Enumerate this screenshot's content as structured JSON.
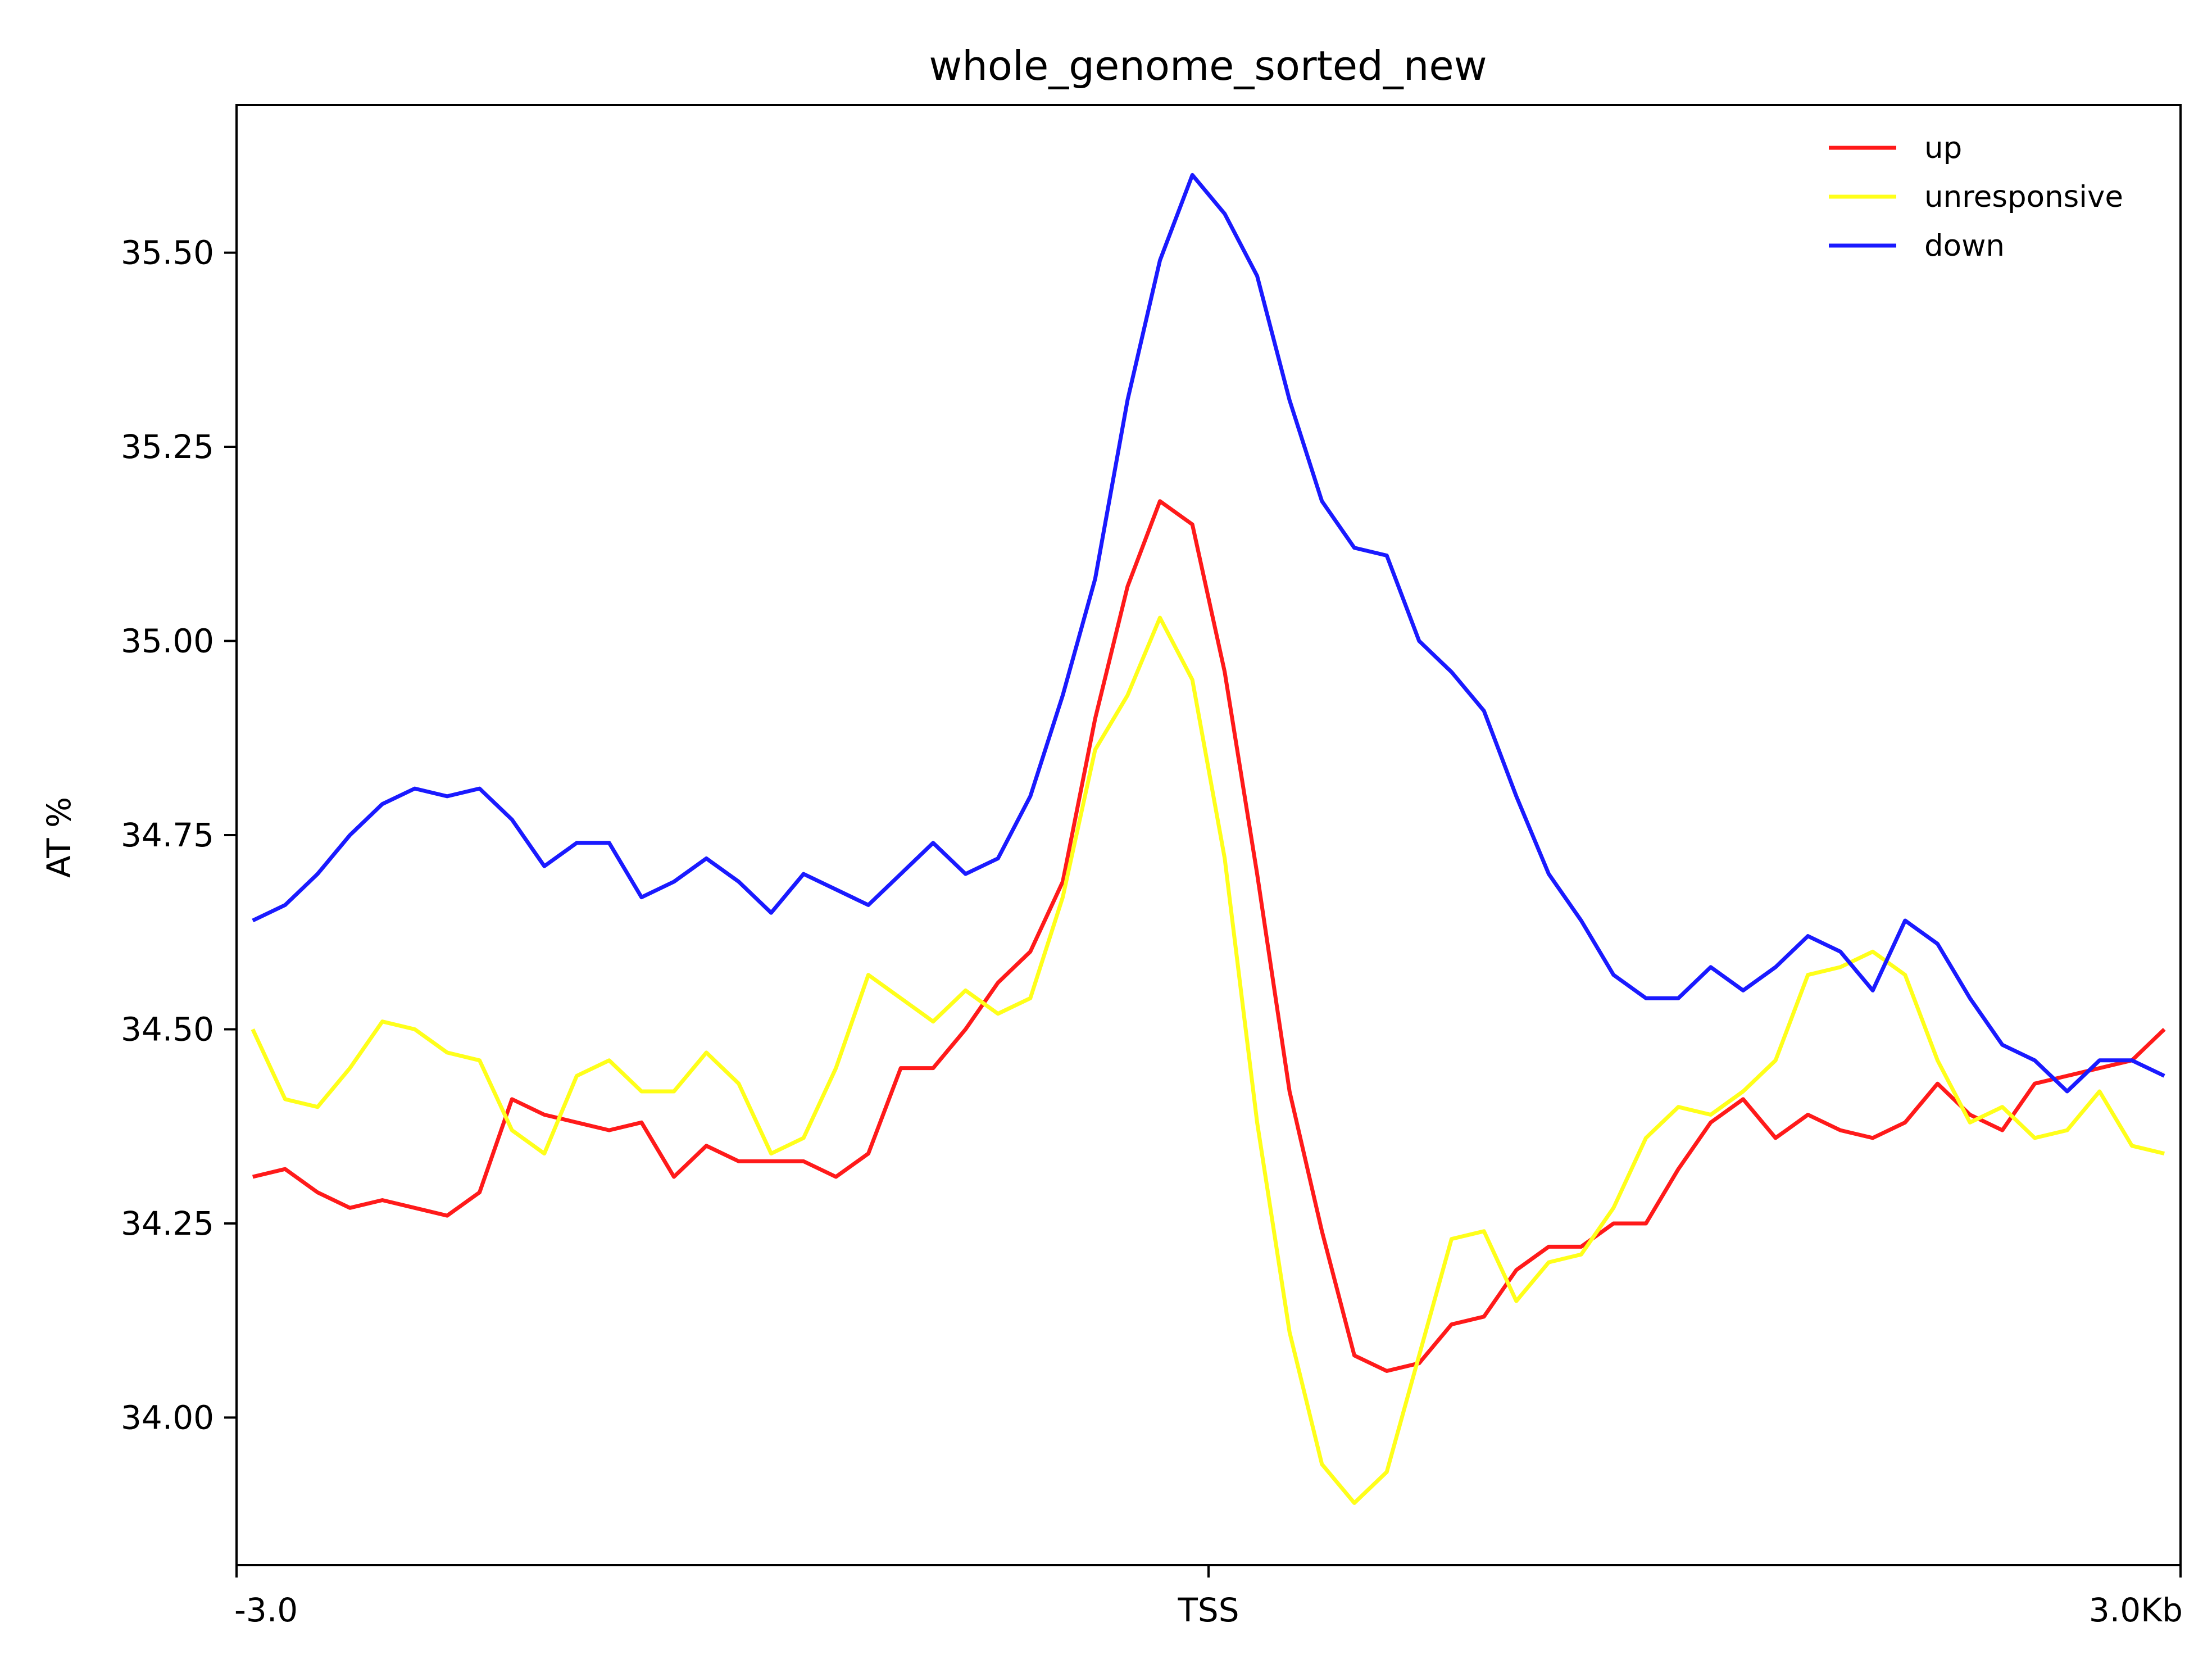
{
  "chart_data": {
    "type": "line",
    "title": "whole_genome_sorted_new",
    "xlabel": "",
    "ylabel": "AT %",
    "xlim": [
      -3.0,
      3.0
    ],
    "ylim": [
      33.81,
      35.69
    ],
    "x_ticks": [
      {
        "value": -3.0,
        "label": "-3.0"
      },
      {
        "value": 0.0,
        "label": "TSS"
      },
      {
        "value": 3.0,
        "label": "3.0Kb"
      }
    ],
    "y_ticks": [
      {
        "value": 34.0,
        "label": "34.00"
      },
      {
        "value": 34.25,
        "label": "34.25"
      },
      {
        "value": 34.5,
        "label": "34.50"
      },
      {
        "value": 34.75,
        "label": "34.75"
      },
      {
        "value": 35.0,
        "label": "35.00"
      },
      {
        "value": 35.25,
        "label": "35.25"
      },
      {
        "value": 35.5,
        "label": "35.50"
      }
    ],
    "grid": false,
    "legend_position": "top-right",
    "x": [
      -2.95,
      -2.85,
      -2.75,
      -2.65,
      -2.55,
      -2.45,
      -2.35,
      -2.25,
      -2.15,
      -2.05,
      -1.95,
      -1.85,
      -1.75,
      -1.65,
      -1.55,
      -1.45,
      -1.35,
      -1.25,
      -1.15,
      -1.05,
      -0.95,
      -0.85,
      -0.75,
      -0.65,
      -0.55,
      -0.45,
      -0.35,
      -0.25,
      -0.15,
      -0.05,
      0.05,
      0.15,
      0.25,
      0.35,
      0.45,
      0.55,
      0.65,
      0.75,
      0.85,
      0.95,
      1.05,
      1.15,
      1.25,
      1.35,
      1.45,
      1.55,
      1.65,
      1.75,
      1.85,
      1.95,
      2.05,
      2.15,
      2.25,
      2.35,
      2.45,
      2.55,
      2.65,
      2.75,
      2.85,
      2.95
    ],
    "series": [
      {
        "name": "up",
        "color": "#ff1a1a",
        "values": [
          34.31,
          34.32,
          34.29,
          34.27,
          34.28,
          34.27,
          34.26,
          34.29,
          34.41,
          34.39,
          34.38,
          34.37,
          34.38,
          34.31,
          34.35,
          34.33,
          34.33,
          34.33,
          34.31,
          34.34,
          34.45,
          34.45,
          34.5,
          34.56,
          34.6,
          34.69,
          34.9,
          35.07,
          35.18,
          35.15,
          34.96,
          34.7,
          34.42,
          34.24,
          34.08,
          34.06,
          34.07,
          34.12,
          34.13,
          34.19,
          34.22,
          34.22,
          34.25,
          34.25,
          34.32,
          34.38,
          34.41,
          34.36,
          34.39,
          34.37,
          34.36,
          34.38,
          34.43,
          34.39,
          34.37,
          34.43,
          34.44,
          34.45,
          34.46,
          34.5
        ]
      },
      {
        "name": "unresponsive",
        "color": "#ffff1a",
        "values": [
          34.5,
          34.41,
          34.4,
          34.45,
          34.51,
          34.5,
          34.47,
          34.46,
          34.37,
          34.34,
          34.44,
          34.46,
          34.42,
          34.42,
          34.47,
          34.43,
          34.34,
          34.36,
          34.45,
          34.57,
          34.54,
          34.51,
          34.55,
          34.52,
          34.54,
          34.67,
          34.86,
          34.93,
          35.03,
          34.95,
          34.72,
          34.38,
          34.11,
          33.94,
          33.89,
          33.93,
          34.08,
          34.23,
          34.24,
          34.15,
          34.2,
          34.21,
          34.27,
          34.36,
          34.4,
          34.39,
          34.42,
          34.46,
          34.57,
          34.58,
          34.6,
          34.57,
          34.46,
          34.38,
          34.4,
          34.36,
          34.37,
          34.42,
          34.35,
          34.34
        ]
      },
      {
        "name": "down",
        "color": "#1a1aff",
        "values": [
          34.64,
          34.66,
          34.7,
          34.75,
          34.79,
          34.81,
          34.8,
          34.81,
          34.77,
          34.71,
          34.74,
          34.74,
          34.67,
          34.69,
          34.72,
          34.69,
          34.65,
          34.7,
          34.68,
          34.66,
          34.7,
          34.74,
          34.7,
          34.72,
          34.8,
          34.93,
          35.08,
          35.31,
          35.49,
          35.6,
          35.55,
          35.47,
          35.31,
          35.18,
          35.12,
          35.11,
          35.0,
          34.96,
          34.91,
          34.8,
          34.7,
          34.64,
          34.57,
          34.54,
          34.54,
          34.58,
          34.55,
          34.58,
          34.62,
          34.6,
          34.55,
          34.64,
          34.61,
          34.54,
          34.48,
          34.46,
          34.42,
          34.46,
          34.46,
          34.44
        ]
      }
    ]
  }
}
